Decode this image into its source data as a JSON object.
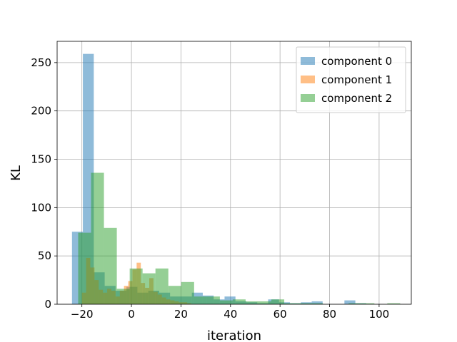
{
  "chart_data": {
    "type": "bar",
    "subtype": "overlapping-histogram",
    "xlabel": "iteration",
    "ylabel": "KL",
    "xlim": [
      -30,
      113
    ],
    "ylim": [
      0,
      272
    ],
    "xticks": [
      -20,
      0,
      20,
      40,
      60,
      80,
      100
    ],
    "yticks": [
      0,
      50,
      100,
      150,
      200,
      250
    ],
    "grid": true,
    "legend_position": "top-right",
    "colors": {
      "component 0": "#1f77b4",
      "component 1": "#ff7f0e",
      "component 2": "#2ca02c",
      "grid": "#b0b0b0",
      "axes": "#000000"
    },
    "series": [
      {
        "name": "component 0",
        "color": "#1f77b4",
        "alpha": 0.5,
        "bins": [
          {
            "x0": -24.0,
            "x1": -19.6,
            "y": 75
          },
          {
            "x0": -19.6,
            "x1": -15.2,
            "y": 259
          },
          {
            "x0": -15.2,
            "x1": -10.8,
            "y": 33
          },
          {
            "x0": -10.8,
            "x1": -6.4,
            "y": 19
          },
          {
            "x0": -6.4,
            "x1": -2.0,
            "y": 14
          },
          {
            "x0": -2.0,
            "x1": 2.4,
            "y": 18
          },
          {
            "x0": 2.4,
            "x1": 6.8,
            "y": 12
          },
          {
            "x0": 6.8,
            "x1": 11.2,
            "y": 14
          },
          {
            "x0": 11.2,
            "x1": 15.6,
            "y": 12
          },
          {
            "x0": 15.6,
            "x1": 20.0,
            "y": 8
          },
          {
            "x0": 20.0,
            "x1": 24.4,
            "y": 8
          },
          {
            "x0": 24.4,
            "x1": 28.8,
            "y": 12
          },
          {
            "x0": 28.8,
            "x1": 33.2,
            "y": 9
          },
          {
            "x0": 33.2,
            "x1": 37.6,
            "y": 5
          },
          {
            "x0": 37.6,
            "x1": 42.0,
            "y": 8
          },
          {
            "x0": 42.0,
            "x1": 46.4,
            "y": 3
          },
          {
            "x0": 46.4,
            "x1": 50.8,
            "y": 2
          },
          {
            "x0": 50.8,
            "x1": 55.2,
            "y": 1
          },
          {
            "x0": 55.2,
            "x1": 59.6,
            "y": 5
          },
          {
            "x0": 59.6,
            "x1": 64.0,
            "y": 2
          },
          {
            "x0": 64.0,
            "x1": 68.4,
            "y": 1
          },
          {
            "x0": 68.4,
            "x1": 72.8,
            "y": 2
          },
          {
            "x0": 72.8,
            "x1": 77.2,
            "y": 3
          },
          {
            "x0": 77.2,
            "x1": 81.6,
            "y": 0
          },
          {
            "x0": 81.6,
            "x1": 86.0,
            "y": 0
          },
          {
            "x0": 86.0,
            "x1": 90.4,
            "y": 4
          },
          {
            "x0": 90.4,
            "x1": 94.8,
            "y": 1
          }
        ]
      },
      {
        "name": "component 1",
        "color": "#ff7f0e",
        "alpha": 0.5,
        "bins": [
          {
            "x0": -20.0,
            "x1": -18.3,
            "y": 12
          },
          {
            "x0": -18.3,
            "x1": -16.6,
            "y": 48
          },
          {
            "x0": -16.6,
            "x1": -14.9,
            "y": 38
          },
          {
            "x0": -14.9,
            "x1": -13.2,
            "y": 25
          },
          {
            "x0": -13.2,
            "x1": -11.5,
            "y": 15
          },
          {
            "x0": -11.5,
            "x1": -9.8,
            "y": 12
          },
          {
            "x0": -9.8,
            "x1": -8.1,
            "y": 16
          },
          {
            "x0": -8.1,
            "x1": -6.4,
            "y": 14
          },
          {
            "x0": -6.4,
            "x1": -4.7,
            "y": 8
          },
          {
            "x0": -4.7,
            "x1": -3.0,
            "y": 14
          },
          {
            "x0": -3.0,
            "x1": -1.3,
            "y": 19
          },
          {
            "x0": -1.3,
            "x1": 0.4,
            "y": 24
          },
          {
            "x0": 0.4,
            "x1": 2.1,
            "y": 36
          },
          {
            "x0": 2.1,
            "x1": 3.8,
            "y": 43
          },
          {
            "x0": 3.8,
            "x1": 5.5,
            "y": 22
          },
          {
            "x0": 5.5,
            "x1": 7.2,
            "y": 17
          },
          {
            "x0": 7.2,
            "x1": 8.9,
            "y": 27
          },
          {
            "x0": 8.9,
            "x1": 10.6,
            "y": 13
          },
          {
            "x0": 10.6,
            "x1": 12.3,
            "y": 10
          },
          {
            "x0": 12.3,
            "x1": 14.0,
            "y": 7
          },
          {
            "x0": 14.0,
            "x1": 15.7,
            "y": 5
          },
          {
            "x0": 15.7,
            "x1": 17.4,
            "y": 4
          },
          {
            "x0": 17.4,
            "x1": 19.1,
            "y": 3
          },
          {
            "x0": 19.1,
            "x1": 20.8,
            "y": 2
          },
          {
            "x0": 20.8,
            "x1": 22.5,
            "y": 2
          },
          {
            "x0": 22.5,
            "x1": 24.2,
            "y": 1
          }
        ]
      },
      {
        "name": "component 2",
        "color": "#2ca02c",
        "alpha": 0.5,
        "bins": [
          {
            "x0": -21.5,
            "x1": -16.3,
            "y": 74
          },
          {
            "x0": -16.3,
            "x1": -11.1,
            "y": 136
          },
          {
            "x0": -11.1,
            "x1": -5.9,
            "y": 79
          },
          {
            "x0": -5.9,
            "x1": -0.7,
            "y": 16
          },
          {
            "x0": -0.7,
            "x1": 4.5,
            "y": 37
          },
          {
            "x0": 4.5,
            "x1": 9.7,
            "y": 32
          },
          {
            "x0": 9.7,
            "x1": 14.9,
            "y": 37
          },
          {
            "x0": 14.9,
            "x1": 20.1,
            "y": 19
          },
          {
            "x0": 20.1,
            "x1": 25.3,
            "y": 23
          },
          {
            "x0": 25.3,
            "x1": 30.5,
            "y": 8
          },
          {
            "x0": 30.5,
            "x1": 35.7,
            "y": 8
          },
          {
            "x0": 35.7,
            "x1": 40.9,
            "y": 4
          },
          {
            "x0": 40.9,
            "x1": 46.1,
            "y": 5
          },
          {
            "x0": 46.1,
            "x1": 51.3,
            "y": 3
          },
          {
            "x0": 51.3,
            "x1": 56.5,
            "y": 3
          },
          {
            "x0": 56.5,
            "x1": 61.7,
            "y": 5
          },
          {
            "x0": 61.7,
            "x1": 66.9,
            "y": 1
          },
          {
            "x0": 66.9,
            "x1": 72.1,
            "y": 1
          },
          {
            "x0": 72.1,
            "x1": 77.3,
            "y": 1
          },
          {
            "x0": 77.3,
            "x1": 82.5,
            "y": 0
          },
          {
            "x0": 82.5,
            "x1": 87.7,
            "y": 0
          },
          {
            "x0": 87.7,
            "x1": 92.9,
            "y": 1
          },
          {
            "x0": 92.9,
            "x1": 98.1,
            "y": 1
          },
          {
            "x0": 98.1,
            "x1": 103.3,
            "y": 0
          },
          {
            "x0": 103.3,
            "x1": 108.5,
            "y": 1
          }
        ]
      }
    ]
  }
}
